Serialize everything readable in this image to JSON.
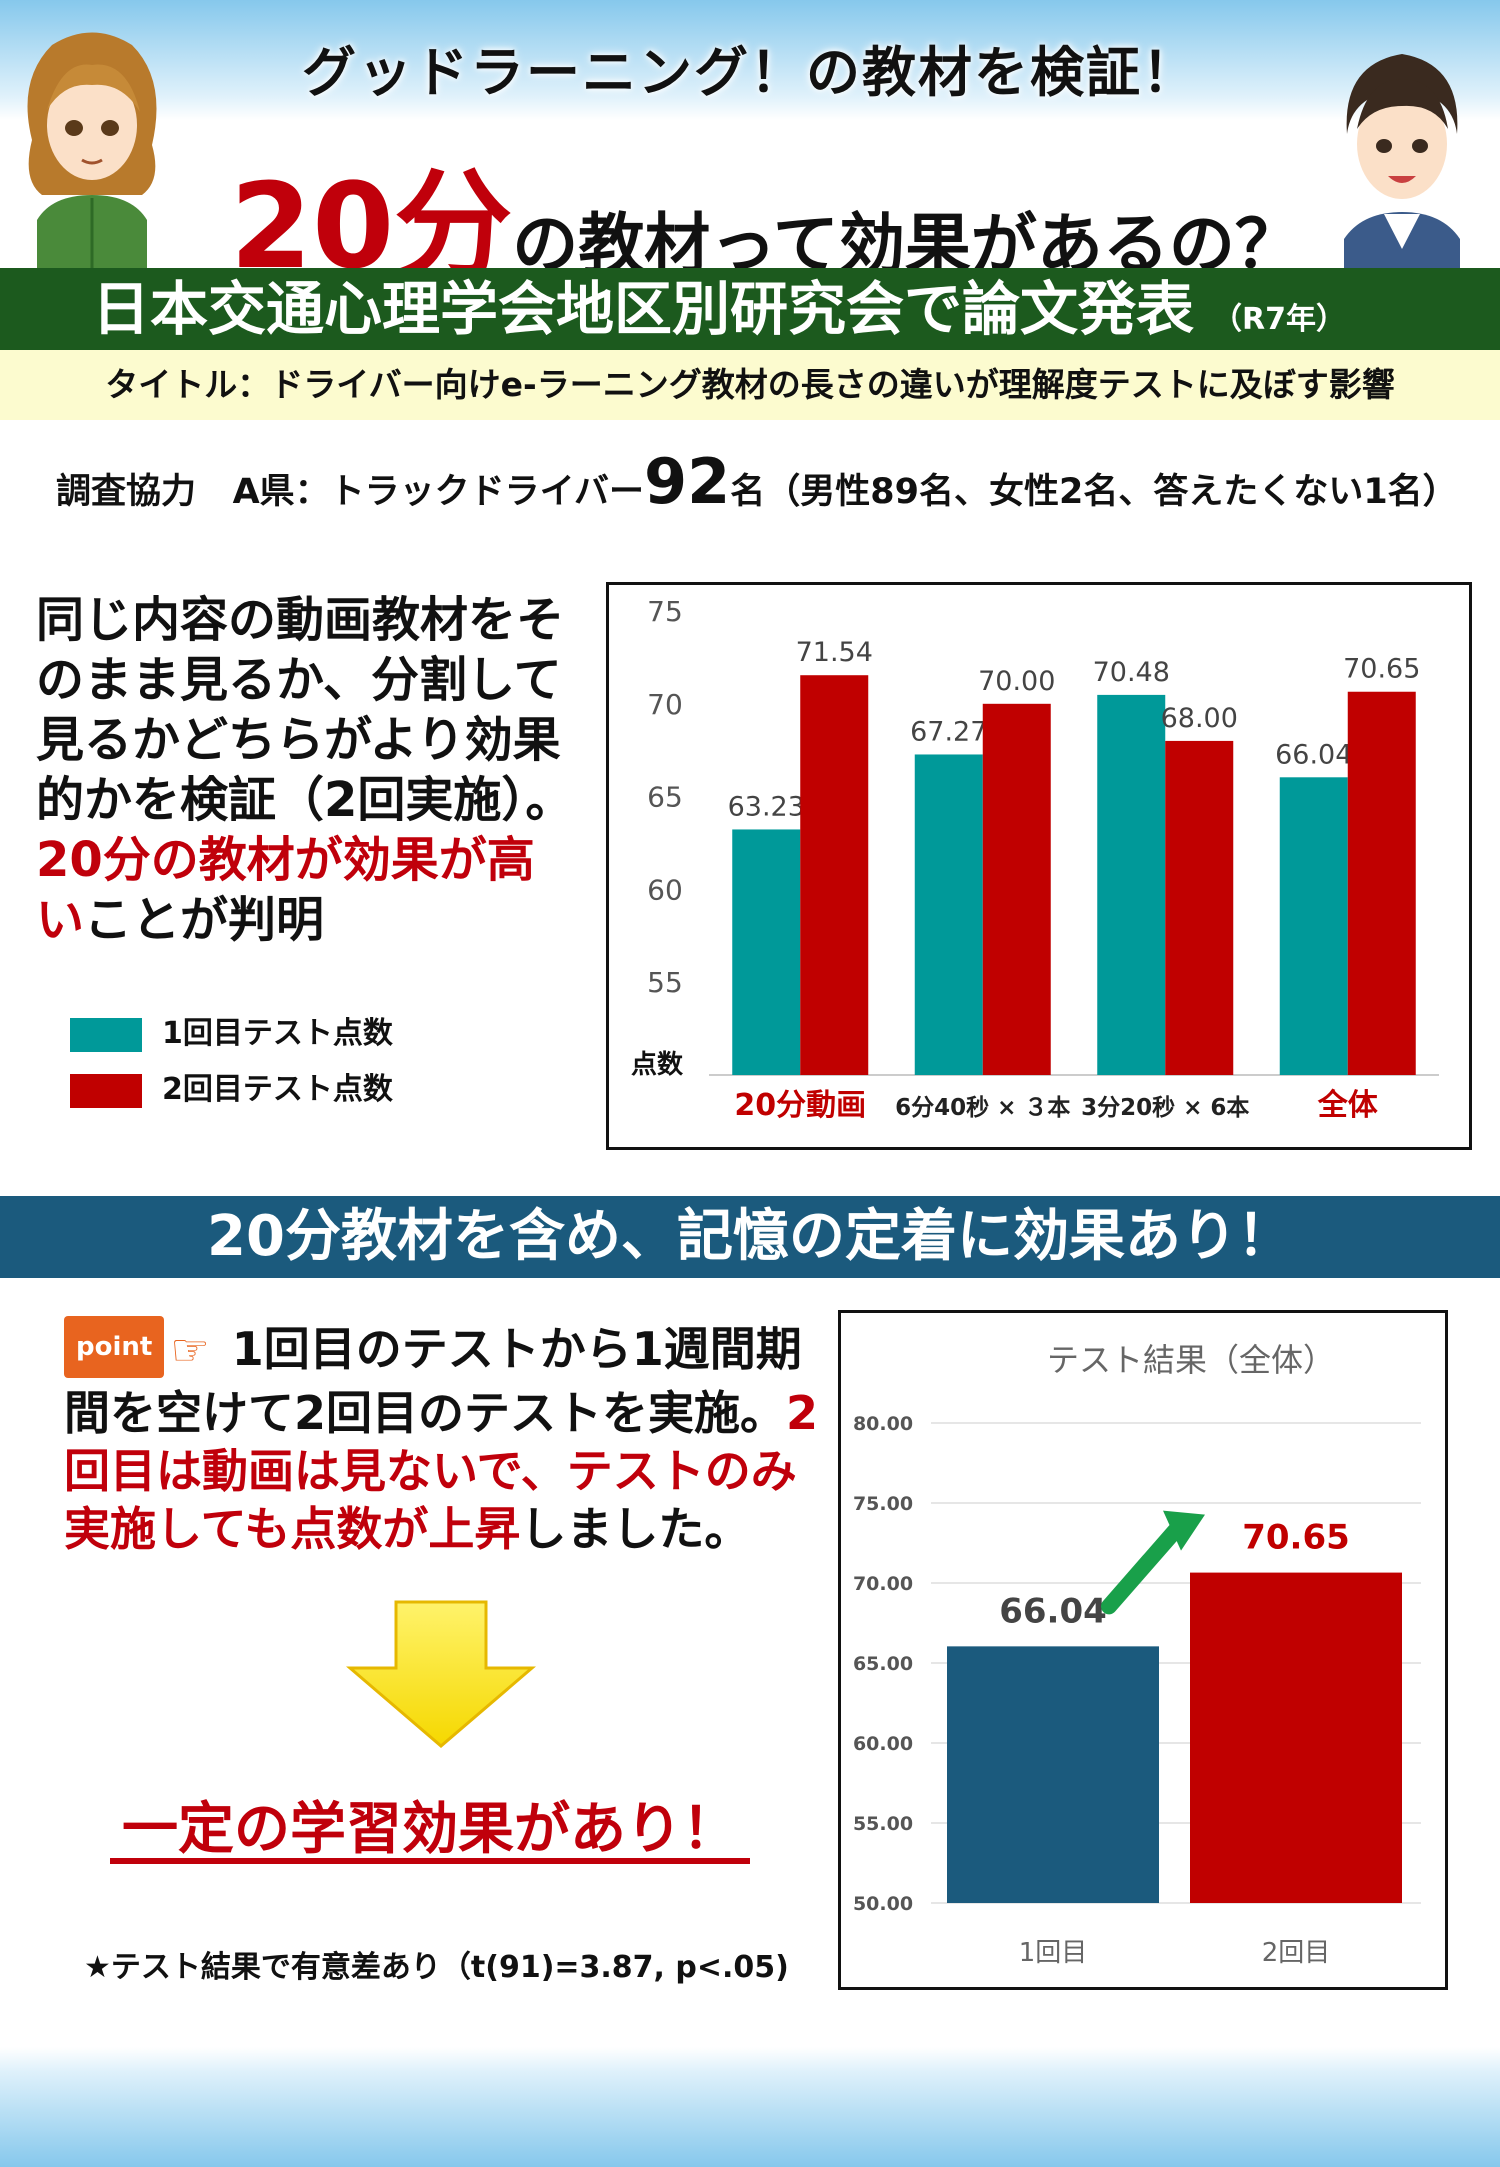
{
  "header": {
    "headline1": "グッドラーニング！の教材を検証！",
    "headline2_big": "20分",
    "headline2_rest": "の教材って効果があるの？"
  },
  "green_band": {
    "main": "日本交通心理学会地区別研究会で論文発表",
    "sub": "（R7年）"
  },
  "title_band": "タイトル：ドライバー向けe-ラーニング教材の長さの違いが理解度テストに及ぼす影響",
  "cooperation": {
    "label": "調査協力",
    "prefix": "A県：トラックドライバー",
    "count": "92",
    "count_unit": "名",
    "detail": "（男性89名、女性2名、答えたくない1名）"
  },
  "description": {
    "normal1": "同じ内容の動画教材をそのまま見るか、分割して見るかどちらがより効果的かを検証（2回実施）。",
    "red1": "20分の教材が効果が高い",
    "normal2": "ことが判明"
  },
  "legend": [
    {
      "label": "1回目テスト点数",
      "color": "#009999"
    },
    {
      "label": "2回目テスト点数",
      "color": "#c00000"
    }
  ],
  "chart_data": [
    {
      "type": "bar",
      "title": "",
      "ylabel": "点数",
      "ylim": [
        50,
        75
      ],
      "yticks": [
        75,
        70,
        65,
        60,
        55
      ],
      "categories": [
        "20分動画",
        "6分40秒 × ３本",
        "3分20秒 × 6本",
        "全体"
      ],
      "category_colors": [
        "#c00000",
        "#222222",
        "#222222",
        "#c00000"
      ],
      "series": [
        {
          "name": "1回目テスト点数",
          "color": "#009999",
          "values": [
            63.23,
            67.27,
            70.48,
            66.04
          ],
          "labels": [
            "63.23",
            "67.27",
            "70.48",
            "66.04"
          ]
        },
        {
          "name": "2回目テスト点数",
          "color": "#c00000",
          "values": [
            71.54,
            70.0,
            68.0,
            70.65
          ],
          "labels": [
            "71.54",
            "70.00",
            "68.00",
            "70.65"
          ]
        }
      ]
    },
    {
      "type": "bar",
      "title": "テスト結果（全体）",
      "ylim": [
        50,
        80
      ],
      "yticks": [
        "80.00",
        "75.00",
        "70.00",
        "65.00",
        "60.00",
        "55.00",
        "50.00"
      ],
      "categories": [
        "1回目",
        "2回目"
      ],
      "values": [
        66.04,
        70.65
      ],
      "labels": [
        "66.04",
        "70.65"
      ],
      "colors": [
        "#1b5a7d",
        "#c00000"
      ]
    }
  ],
  "blue_band": "20分教材を含め、記憶の定着に効果あり！",
  "point": {
    "badge": "point",
    "normal1": "1回目のテストから1週間期間を空けて2回目のテストを実施。",
    "red1": "2回目は動画は見ないで、テストのみ実施しても点数が上昇",
    "normal2": "しました。"
  },
  "conclusion": "一定の学習効果があり！",
  "footnote": "★テスト結果で有意差あり（t(91)=3.87, p<.05)"
}
